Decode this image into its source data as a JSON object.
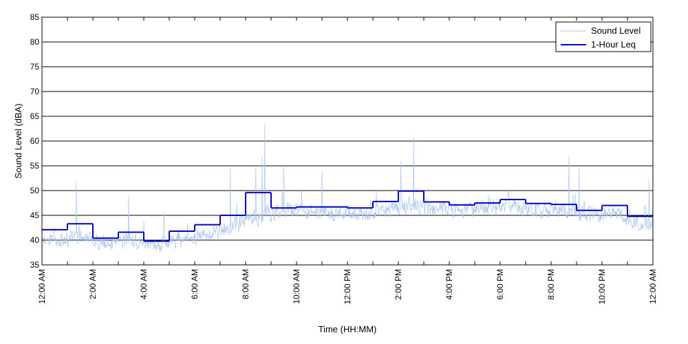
{
  "chart_data": {
    "type": "line",
    "title": "",
    "xlabel": "Time (HH:MM)",
    "ylabel": "Sound Level (dBA)",
    "ylim": [
      35,
      85
    ],
    "yticks": [
      35,
      40,
      45,
      50,
      55,
      60,
      65,
      70,
      75,
      80,
      85
    ],
    "xlim_hours": [
      0,
      24
    ],
    "xticks": [
      {
        "hour": 0,
        "label": "12:00 AM"
      },
      {
        "hour": 2,
        "label": "2:00 AM"
      },
      {
        "hour": 4,
        "label": "4:00 AM"
      },
      {
        "hour": 6,
        "label": "6:00 AM"
      },
      {
        "hour": 8,
        "label": "8:00 AM"
      },
      {
        "hour": 10,
        "label": "10:00 AM"
      },
      {
        "hour": 12,
        "label": "12:00 PM"
      },
      {
        "hour": 14,
        "label": "2:00 PM"
      },
      {
        "hour": 16,
        "label": "4:00 PM"
      },
      {
        "hour": 18,
        "label": "6:00 PM"
      },
      {
        "hour": 20,
        "label": "8:00 PM"
      },
      {
        "hour": 22,
        "label": "10:00 PM"
      },
      {
        "hour": 24,
        "label": "12:00 AM"
      }
    ],
    "grid": "horizontal",
    "legend_position": "top-right",
    "series": [
      {
        "name": "Sound Level",
        "color": "#a8c4f0",
        "style": "thin-line",
        "hourly_mean": [
          40,
          40.5,
          39.5,
          40,
          39,
          40,
          41,
          43,
          44.5,
          46,
          45.5,
          45.5,
          45.5,
          46,
          47,
          46.5,
          46,
          46.5,
          47,
          46,
          46,
          45,
          45.5,
          43
        ],
        "peaks": [
          {
            "hour": 1.35,
            "value": 52
          },
          {
            "hour": 3.4,
            "value": 49
          },
          {
            "hour": 7.4,
            "value": 54.5
          },
          {
            "hour": 8.4,
            "value": 55
          },
          {
            "hour": 8.65,
            "value": 57
          },
          {
            "hour": 8.75,
            "value": 63.5
          },
          {
            "hour": 9.5,
            "value": 55
          },
          {
            "hour": 11.0,
            "value": 54
          },
          {
            "hour": 14.1,
            "value": 56
          },
          {
            "hour": 14.6,
            "value": 61
          },
          {
            "hour": 20.7,
            "value": 57
          },
          {
            "hour": 21.1,
            "value": 54.5
          },
          {
            "hour": 23.85,
            "value": 52
          }
        ]
      },
      {
        "name": "1-Hour Leq",
        "color": "#0000c8",
        "style": "step",
        "hours": [
          0,
          1,
          2,
          3,
          4,
          5,
          6,
          7,
          8,
          9,
          10,
          11,
          12,
          13,
          14,
          15,
          16,
          17,
          18,
          19,
          20,
          21,
          22,
          23
        ],
        "values": [
          42.1,
          43.3,
          40.4,
          41.6,
          39.8,
          41.8,
          43.1,
          45.0,
          49.6,
          46.5,
          46.7,
          46.7,
          46.5,
          47.8,
          49.9,
          47.7,
          47.1,
          47.5,
          48.2,
          47.4,
          47.2,
          46.0,
          47.0,
          44.8
        ]
      }
    ]
  }
}
